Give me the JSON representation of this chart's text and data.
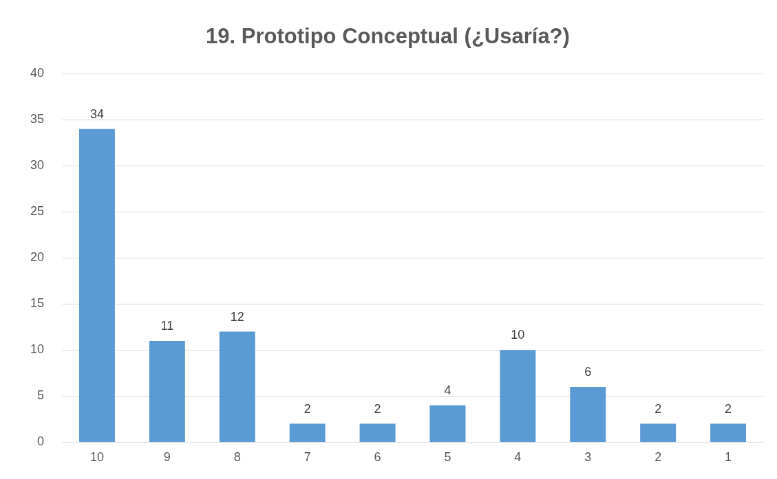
{
  "chart_data": {
    "type": "bar",
    "title": "19. Prototipo Conceptual (¿Usaría?)",
    "categories": [
      "10",
      "9",
      "8",
      "7",
      "6",
      "5",
      "4",
      "3",
      "2",
      "1"
    ],
    "values": [
      34,
      11,
      12,
      2,
      2,
      4,
      10,
      6,
      2,
      2
    ],
    "color": "#5b9bd5",
    "ylim": [
      0,
      40
    ],
    "yticks": [
      0,
      5,
      10,
      15,
      20,
      25,
      30,
      35,
      40
    ],
    "grid": "y",
    "legend": false,
    "data_labels": true
  }
}
